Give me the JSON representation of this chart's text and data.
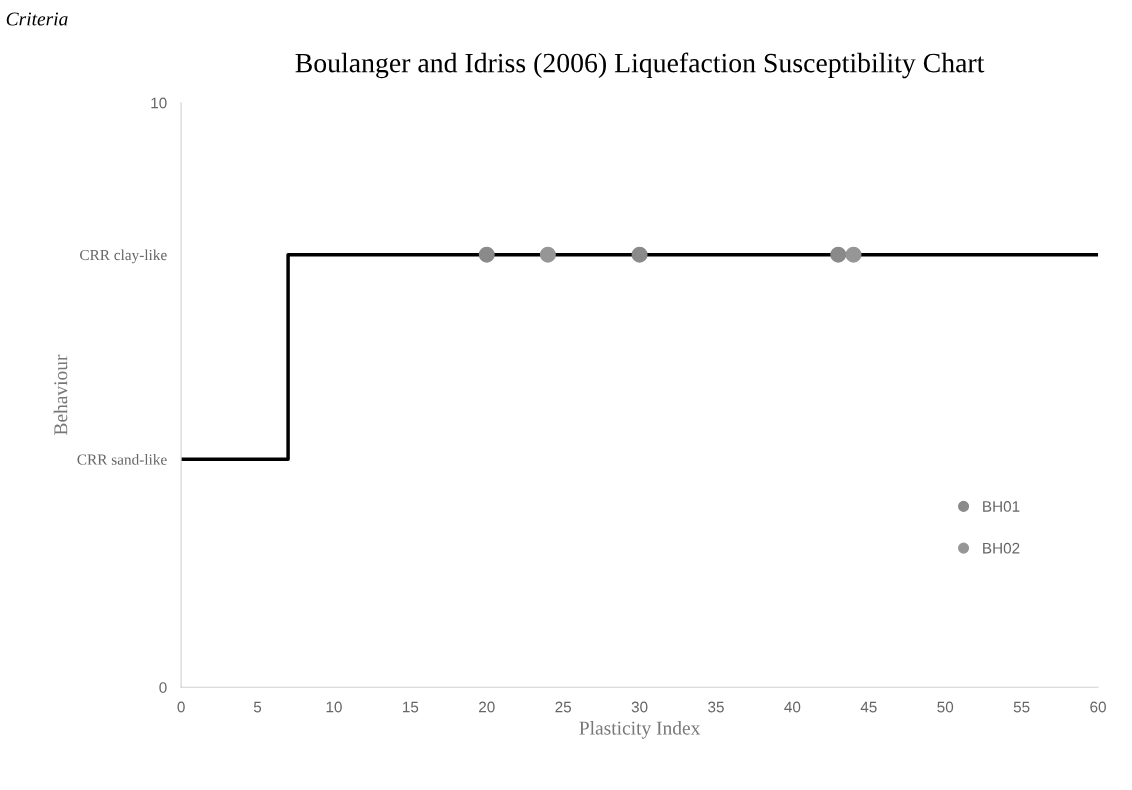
{
  "chart_data": {
    "type": "scatter",
    "title": "Boulanger and Idriss (2006) Liquefaction Susceptibility Chart",
    "xlabel": "Plasticity Index",
    "ylabel": "Behaviour",
    "xlim": [
      0,
      60
    ],
    "xticks": [
      0,
      5,
      10,
      15,
      20,
      25,
      30,
      35,
      40,
      45,
      50,
      55,
      60
    ],
    "ylim": [
      0,
      10
    ],
    "yticks": [
      0,
      {
        "value": 3.9,
        "label": "CRR sand-like"
      },
      {
        "value": 7.4,
        "label": "CRR clay-like"
      },
      10
    ],
    "grid": false,
    "legend": "bottom right",
    "series": [
      {
        "type": "line",
        "color": "#000000",
        "x": [
          0,
          7,
          7,
          60
        ],
        "values": [
          3.9,
          3.9,
          7.4,
          7.4
        ]
      },
      {
        "name": "BH01",
        "color": "#8a8a8a",
        "marker": "circle",
        "x": [
          20,
          30,
          43
        ],
        "values": [
          7.4,
          7.4,
          7.4
        ]
      },
      {
        "name": "BH02",
        "color": "#969696",
        "marker": "circle",
        "x": [
          24,
          44
        ],
        "values": [
          7.4,
          7.4
        ]
      }
    ],
    "annotations": [
      "Criteria"
    ]
  }
}
